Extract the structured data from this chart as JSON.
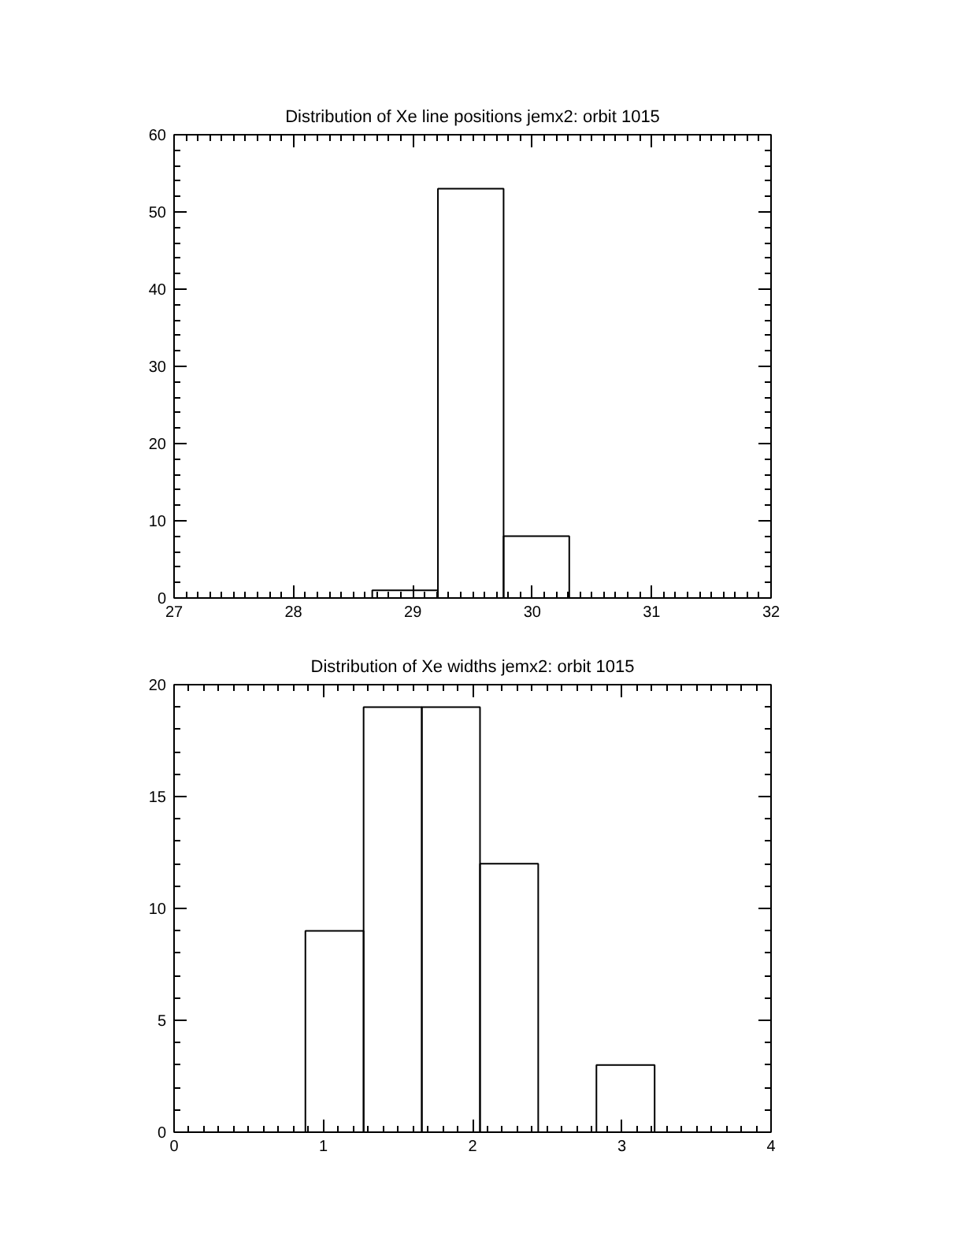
{
  "chart_data": [
    {
      "type": "histogram",
      "title": "Distribution of Xe line positions jemx2: orbit 1015",
      "bins": [
        28.66,
        29.21,
        29.76,
        30.31
      ],
      "values": [
        1,
        53,
        8
      ],
      "color": "#000000",
      "xlim": [
        27,
        32
      ],
      "xticks": [
        27,
        28,
        29,
        30,
        31,
        32
      ],
      "ylim": [
        0,
        60
      ],
      "yticks": [
        0,
        10,
        20,
        30,
        40,
        50,
        60
      ]
    },
    {
      "type": "histogram",
      "title": "Distribution of Xe widths jemx2: orbit 1015",
      "bins": [
        0.88,
        1.27,
        1.66,
        2.05,
        2.44,
        2.83,
        3.22
      ],
      "values": [
        9,
        19,
        19,
        12,
        0,
        3
      ],
      "color": "#000000",
      "xlim": [
        0,
        4
      ],
      "xticks": [
        0,
        1,
        2,
        3,
        4
      ],
      "ylim": [
        0,
        20
      ],
      "yticks": [
        0,
        5,
        10,
        15,
        20
      ]
    }
  ]
}
